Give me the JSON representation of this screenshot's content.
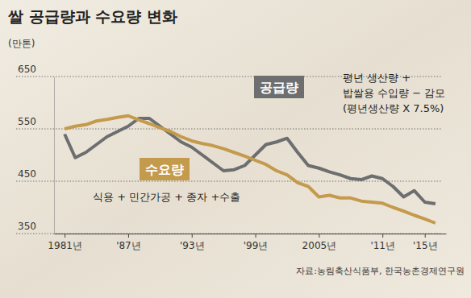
{
  "chart_data": {
    "type": "line",
    "title": "쌀 공급량과 수요량 변화",
    "ylabel": "(만톤)",
    "source": "자료:농림축산식품부, 한국농촌경제연구원",
    "x": [
      1981,
      1982,
      1983,
      1984,
      1985,
      1986,
      1987,
      1988,
      1989,
      1990,
      1991,
      1992,
      1993,
      1994,
      1995,
      1996,
      1997,
      1998,
      1999,
      2000,
      2001,
      2002,
      2003,
      2004,
      2005,
      2006,
      2007,
      2008,
      2009,
      2010,
      2011,
      2012,
      2013,
      2014,
      2015,
      2016
    ],
    "series": [
      {
        "name": "공급량",
        "color": "#6d6e70",
        "values": [
          540,
          495,
          505,
          520,
          535,
          545,
          555,
          570,
          570,
          555,
          540,
          525,
          515,
          500,
          485,
          470,
          472,
          480,
          500,
          520,
          525,
          532,
          505,
          480,
          475,
          468,
          462,
          455,
          453,
          460,
          455,
          440,
          420,
          432,
          410,
          407
        ]
      },
      {
        "name": "수요량",
        "color": "#c49a4c",
        "values": [
          550,
          555,
          558,
          565,
          568,
          572,
          575,
          567,
          560,
          552,
          545,
          535,
          527,
          522,
          518,
          512,
          505,
          498,
          490,
          482,
          470,
          462,
          447,
          440,
          420,
          423,
          418,
          418,
          412,
          410,
          408,
          400,
          393,
          385,
          378,
          370
        ]
      }
    ],
    "annotations": [
      {
        "lines": [
          "평년 생산량 +",
          "밥쌀용 수입량 − 감모",
          "(평년생산량 X 7.5%)"
        ]
      },
      {
        "lines": [
          "식용 + 민간가공 + 종자 +수출"
        ]
      }
    ],
    "xlim": [
      1980,
      2017
    ],
    "xticks": [
      {
        "value": 1981,
        "label": "1981년"
      },
      {
        "value": 1987,
        "label": "'87년"
      },
      {
        "value": 1993,
        "label": "'93년"
      },
      {
        "value": 1999,
        "label": "'99년"
      },
      {
        "value": 2005,
        "label": "2005년"
      },
      {
        "value": 2011,
        "label": "'11년"
      },
      {
        "value": 2015,
        "label": "'15년"
      }
    ],
    "ylim": [
      350,
      650
    ],
    "yticks": [
      350,
      450,
      550,
      650
    ],
    "grid": true
  }
}
